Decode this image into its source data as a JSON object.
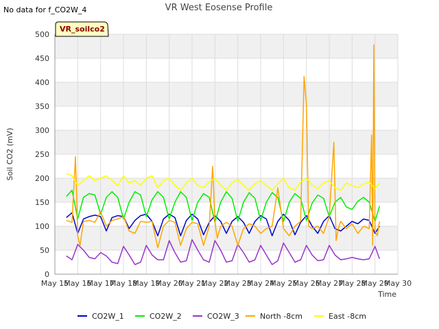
{
  "no_data_text": "No data for f_CO2W_4",
  "badge_text": "VR_soilco2",
  "colors": {
    "plot_band": "#f0f0f0",
    "gridline": "#dcdcdc",
    "badge_fill": "#ffffc0",
    "badge_stroke": "#000000"
  },
  "chart_data": {
    "type": "line",
    "title": "VR West Eosense Profile",
    "xlabel": "Time",
    "ylabel": "Soil CO2 (mV)",
    "xlim": [
      15,
      30
    ],
    "ylim": [
      0,
      500
    ],
    "x_ticks": [
      {
        "value": 15,
        "label": "May 15"
      },
      {
        "value": 16,
        "label": "May 16"
      },
      {
        "value": 17,
        "label": "May 17"
      },
      {
        "value": 18,
        "label": "May 18"
      },
      {
        "value": 19,
        "label": "May 19"
      },
      {
        "value": 20,
        "label": "May 20"
      },
      {
        "value": 21,
        "label": "May 21"
      },
      {
        "value": 22,
        "label": "May 22"
      },
      {
        "value": 23,
        "label": "May 23"
      },
      {
        "value": 24,
        "label": "May 24"
      },
      {
        "value": 25,
        "label": "May 25"
      },
      {
        "value": 26,
        "label": "May 26"
      },
      {
        "value": 27,
        "label": "May 27"
      },
      {
        "value": 28,
        "label": "May 28"
      },
      {
        "value": 29,
        "label": "May 29"
      },
      {
        "value": 30,
        "label": "May 30"
      }
    ],
    "y_ticks": [
      0,
      50,
      100,
      150,
      200,
      250,
      300,
      350,
      400,
      450,
      500
    ],
    "grid": true,
    "legend_position": "bottom",
    "series": [
      {
        "name": "CO2W_1",
        "color": "#0000cc",
        "x": [
          15.5,
          15.75,
          16.0,
          16.25,
          16.5,
          16.75,
          17.0,
          17.25,
          17.5,
          17.75,
          18.0,
          18.25,
          18.5,
          18.75,
          19.0,
          19.25,
          19.5,
          19.75,
          20.0,
          20.25,
          20.5,
          20.75,
          21.0,
          21.25,
          21.5,
          21.75,
          22.0,
          22.25,
          22.5,
          22.75,
          23.0,
          23.25,
          23.5,
          23.75,
          24.0,
          24.25,
          24.5,
          24.75,
          25.0,
          25.25,
          25.5,
          25.75,
          26.0,
          26.25,
          26.5,
          26.75,
          27.0,
          27.25,
          27.5,
          27.75,
          28.0,
          28.25,
          28.5,
          28.75,
          29.0,
          29.2
        ],
        "values": [
          118,
          128,
          85,
          115,
          120,
          123,
          120,
          90,
          118,
          122,
          120,
          95,
          112,
          122,
          125,
          110,
          80,
          115,
          125,
          118,
          80,
          112,
          125,
          115,
          82,
          108,
          122,
          110,
          85,
          110,
          120,
          108,
          85,
          110,
          122,
          115,
          80,
          110,
          125,
          112,
          82,
          108,
          122,
          100,
          85,
          110,
          122,
          95,
          90,
          100,
          110,
          105,
          115,
          112,
          85,
          100
        ]
      },
      {
        "name": "CO2W_2",
        "color": "#00ee00",
        "x": [
          15.5,
          15.75,
          16.0,
          16.25,
          16.5,
          16.75,
          17.0,
          17.25,
          17.5,
          17.75,
          18.0,
          18.25,
          18.5,
          18.75,
          19.0,
          19.25,
          19.5,
          19.75,
          20.0,
          20.25,
          20.5,
          20.75,
          21.0,
          21.25,
          21.5,
          21.75,
          22.0,
          22.25,
          22.5,
          22.75,
          23.0,
          23.25,
          23.5,
          23.75,
          24.0,
          24.25,
          24.5,
          24.75,
          25.0,
          25.25,
          25.5,
          25.75,
          26.0,
          26.25,
          26.5,
          26.75,
          27.0,
          27.25,
          27.5,
          27.75,
          28.0,
          28.25,
          28.5,
          28.75,
          29.0,
          29.2
        ],
        "values": [
          162,
          175,
          115,
          160,
          168,
          165,
          125,
          160,
          172,
          160,
          115,
          150,
          172,
          165,
          120,
          155,
          172,
          160,
          115,
          150,
          172,
          160,
          112,
          150,
          168,
          160,
          108,
          150,
          172,
          158,
          110,
          150,
          170,
          158,
          112,
          150,
          170,
          160,
          110,
          150,
          168,
          158,
          112,
          148,
          165,
          158,
          120,
          150,
          160,
          140,
          135,
          152,
          160,
          150,
          110,
          142
        ]
      },
      {
        "name": "CO2W_3",
        "color": "#9933cc",
        "x": [
          15.5,
          15.75,
          16.0,
          16.25,
          16.5,
          16.75,
          17.0,
          17.25,
          17.5,
          17.75,
          18.0,
          18.25,
          18.5,
          18.75,
          19.0,
          19.25,
          19.5,
          19.75,
          20.0,
          20.25,
          20.5,
          20.75,
          21.0,
          21.25,
          21.5,
          21.75,
          22.0,
          22.25,
          22.5,
          22.75,
          23.0,
          23.25,
          23.5,
          23.75,
          24.0,
          24.25,
          24.5,
          24.75,
          25.0,
          25.25,
          25.5,
          25.75,
          26.0,
          26.25,
          26.5,
          26.75,
          27.0,
          27.25,
          27.5,
          27.75,
          28.0,
          28.25,
          28.5,
          28.75,
          29.0,
          29.2
        ],
        "values": [
          38,
          30,
          62,
          50,
          35,
          32,
          45,
          38,
          25,
          22,
          58,
          40,
          20,
          25,
          60,
          40,
          30,
          30,
          70,
          45,
          25,
          28,
          72,
          50,
          30,
          25,
          70,
          50,
          25,
          28,
          62,
          45,
          25,
          30,
          60,
          40,
          20,
          28,
          65,
          45,
          25,
          30,
          60,
          40,
          28,
          30,
          60,
          40,
          30,
          32,
          35,
          32,
          30,
          32,
          58,
          32
        ]
      },
      {
        "name": "North -8cm",
        "color": "#ffa500",
        "x": [
          15.5,
          15.75,
          15.9,
          16.0,
          16.1,
          16.25,
          16.5,
          16.75,
          17.0,
          17.25,
          17.5,
          17.75,
          18.0,
          18.25,
          18.5,
          18.75,
          19.0,
          19.25,
          19.5,
          19.75,
          20.0,
          20.25,
          20.5,
          20.75,
          21.0,
          21.25,
          21.5,
          21.75,
          21.9,
          22.0,
          22.1,
          22.25,
          22.5,
          22.75,
          23.0,
          23.25,
          23.5,
          23.75,
          24.0,
          24.25,
          24.5,
          24.75,
          25.0,
          25.25,
          25.5,
          25.75,
          25.9,
          26.0,
          26.1,
          26.25,
          26.5,
          26.75,
          27.0,
          27.2,
          27.3,
          27.4,
          27.5,
          27.75,
          28.0,
          28.25,
          28.5,
          28.75,
          28.85,
          28.9,
          28.95,
          29.0,
          29.1,
          29.2
        ],
        "values": [
          112,
          108,
          245,
          80,
          60,
          110,
          112,
          108,
          130,
          100,
          112,
          115,
          120,
          90,
          85,
          110,
          108,
          110,
          55,
          100,
          112,
          108,
          60,
          95,
          108,
          105,
          60,
          100,
          225,
          110,
          75,
          100,
          108,
          100,
          60,
          95,
          105,
          100,
          85,
          95,
          100,
          180,
          95,
          80,
          100,
          110,
          412,
          355,
          100,
          95,
          100,
          85,
          120,
          275,
          70,
          95,
          110,
          95,
          105,
          85,
          100,
          95,
          290,
          60,
          478,
          90,
          80,
          110
        ]
      },
      {
        "name": "East -8cm",
        "color": "#ffff00",
        "x": [
          15.5,
          15.75,
          16.0,
          16.25,
          16.5,
          16.75,
          17.0,
          17.25,
          17.5,
          17.75,
          18.0,
          18.25,
          18.5,
          18.75,
          19.0,
          19.25,
          19.5,
          19.75,
          20.0,
          20.25,
          20.5,
          20.75,
          21.0,
          21.25,
          21.5,
          21.75,
          22.0,
          22.25,
          22.5,
          22.75,
          23.0,
          23.25,
          23.5,
          23.75,
          24.0,
          24.25,
          24.5,
          24.75,
          25.0,
          25.25,
          25.5,
          25.75,
          26.0,
          26.25,
          26.5,
          26.75,
          27.0,
          27.25,
          27.5,
          27.75,
          28.0,
          28.25,
          28.5,
          28.75,
          29.0,
          29.2
        ],
        "values": [
          210,
          205,
          185,
          195,
          205,
          195,
          200,
          205,
          195,
          185,
          205,
          190,
          195,
          185,
          200,
          205,
          180,
          195,
          200,
          185,
          175,
          190,
          200,
          185,
          180,
          192,
          200,
          185,
          175,
          190,
          198,
          185,
          175,
          188,
          195,
          185,
          175,
          188,
          200,
          180,
          175,
          192,
          200,
          185,
          178,
          190,
          195,
          180,
          175,
          190,
          185,
          180,
          188,
          192,
          178,
          190
        ]
      }
    ]
  }
}
